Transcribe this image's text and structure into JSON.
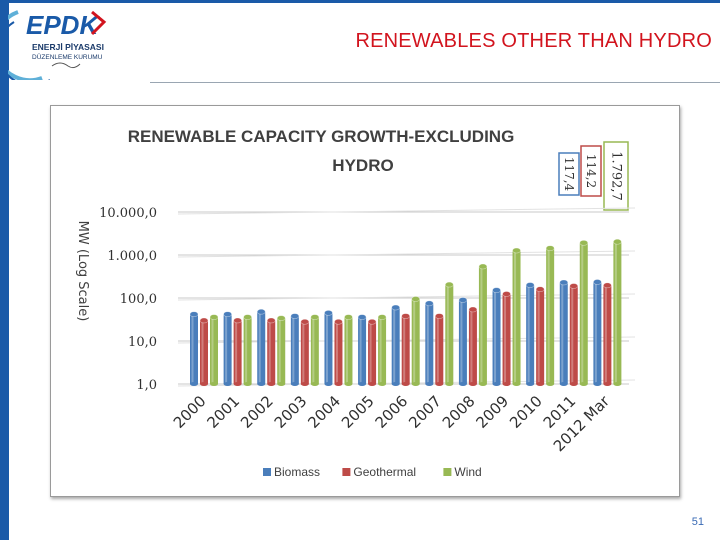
{
  "slide": {
    "title": "RENEWABLES OTHER THAN HYDRO",
    "page_number": "51",
    "logo": {
      "brand": "EPDK",
      "line1": "ENERJİ PİYASASI",
      "line2": "DÜZENLEME KURUMU"
    }
  },
  "colors": {
    "accent": "#1a5aa8",
    "title": "#d2141e",
    "biomass": "#4a7ebb",
    "geothermal": "#be4b48",
    "wind": "#98b954"
  },
  "chart_data": {
    "type": "bar",
    "title": "RENEWABLE CAPACITY GROWTH-EXCLUDING HYDRO",
    "ylabel": "MW (Log Scale)",
    "y_scale": "log",
    "ylim": [
      1,
      10000
    ],
    "y_ticks": [
      "1,0",
      "10,0",
      "100,0",
      "1.000,0",
      "10.000,0"
    ],
    "grid": true,
    "legend_position": "bottom",
    "categories": [
      "2000",
      "2001",
      "2002",
      "2003",
      "2004",
      "2005",
      "2006",
      "2007",
      "2008",
      "2009",
      "2010",
      "2011",
      "2012 Mar"
    ],
    "series": [
      {
        "name": "Biomass",
        "color": "#4a7ebb",
        "values": [
          42,
          42,
          48,
          38,
          45,
          36,
          60,
          75,
          90,
          152,
          200,
          230,
          236
        ]
      },
      {
        "name": "Geothermal",
        "color": "#be4b48",
        "values": [
          30,
          30,
          30,
          28,
          28,
          28,
          38,
          38,
          54,
          124,
          160,
          190,
          197
        ]
      },
      {
        "name": "Wind",
        "color": "#98b954",
        "values": [
          36,
          36,
          34,
          36,
          36,
          36,
          95,
          205,
          540,
          1270,
          1440,
          1920,
          2033
        ]
      }
    ],
    "annotations": [
      {
        "series": "Biomass",
        "text": "117,4"
      },
      {
        "series": "Geothermal",
        "text": "114,2"
      },
      {
        "series": "Wind",
        "text": "1.792,7"
      }
    ]
  }
}
